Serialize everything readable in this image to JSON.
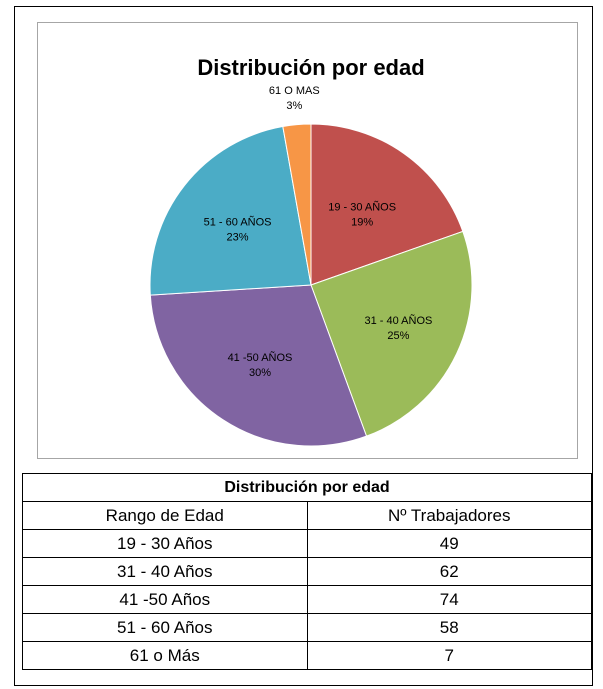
{
  "chart_data": {
    "type": "pie",
    "title": "Distribución por edad",
    "slices": [
      {
        "label": "19 - 30 AÑOS",
        "pct": "19%",
        "value": 49,
        "color": "#c0504d"
      },
      {
        "label": "31 - 40 AÑOS",
        "pct": "25%",
        "value": 62,
        "color": "#9bbb59"
      },
      {
        "label": "41 -50 AÑOS",
        "pct": "30%",
        "value": 74,
        "color": "#8064a2"
      },
      {
        "label": "51 - 60 AÑOS",
        "pct": "23%",
        "value": 58,
        "color": "#4bacc6"
      },
      {
        "label": "61 O MAS",
        "pct": "3%",
        "value": 7,
        "color": "#f79646"
      }
    ]
  },
  "table": {
    "title": "Distribución por edad",
    "headers": [
      "Rango de Edad",
      "Nº Trabajadores"
    ],
    "rows": [
      [
        "19 - 30 Años",
        "49"
      ],
      [
        "31 - 40 Años",
        "62"
      ],
      [
        "41 -50 Años",
        "74"
      ],
      [
        "51 - 60 Años",
        "58"
      ],
      [
        "61 o Más",
        "7"
      ]
    ]
  }
}
